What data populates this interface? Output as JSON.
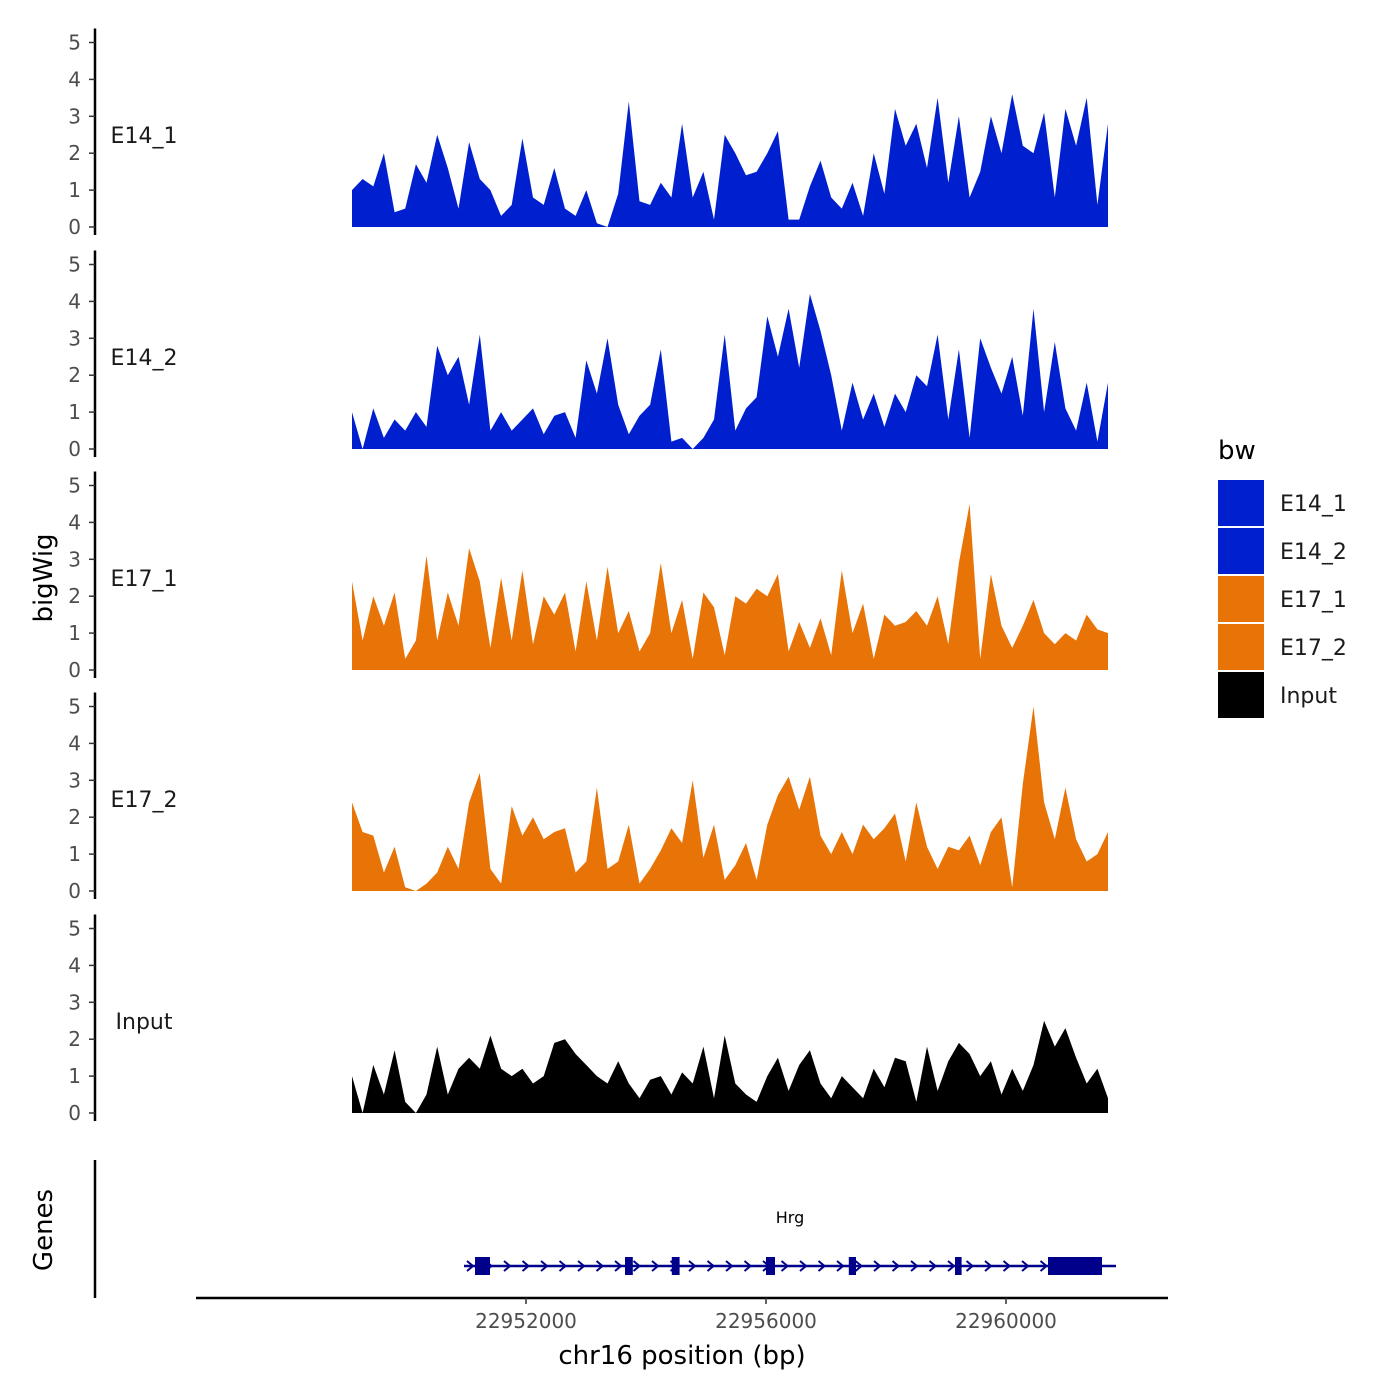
{
  "chart_data": {
    "type": "area",
    "chromosome": "chr16",
    "xlabel": "chr16 position (bp)",
    "ylabel": "bigWig",
    "gene_track_label": "Genes",
    "xlim": [
      22946500,
      22962700
    ],
    "region": [
      22949100,
      22961700
    ],
    "x_ticks": [
      22952000,
      22956000,
      22960000
    ],
    "x_tick_labels": [
      "22952000",
      "22956000",
      "22960000"
    ],
    "ylim": [
      0,
      5
    ],
    "y_ticks": [
      0,
      1,
      2,
      3,
      4,
      5
    ],
    "y_tick_labels": [
      "0",
      "1",
      "2",
      "3",
      "4",
      "5"
    ],
    "legend": {
      "title": "bw",
      "entries": [
        {
          "label": "E14_1",
          "color": "#0020d0"
        },
        {
          "label": "E14_2",
          "color": "#0020d0"
        },
        {
          "label": "E17_1",
          "color": "#e87408"
        },
        {
          "label": "E17_2",
          "color": "#e87408"
        },
        {
          "label": "Input",
          "color": "#000000"
        }
      ]
    },
    "series": [
      {
        "name": "E14_1",
        "color": "#0020d0",
        "values": [
          1.0,
          1.3,
          1.1,
          2.0,
          0.4,
          0.5,
          1.7,
          1.2,
          2.5,
          1.6,
          0.5,
          2.3,
          1.3,
          1.0,
          0.3,
          0.6,
          2.4,
          0.8,
          0.6,
          1.6,
          0.5,
          0.3,
          1.0,
          0.1,
          0.0,
          0.9,
          3.4,
          0.7,
          0.6,
          1.2,
          0.8,
          2.8,
          0.8,
          1.5,
          0.2,
          2.5,
          2.0,
          1.4,
          1.5,
          2.0,
          2.6,
          0.2,
          0.2,
          1.1,
          1.8,
          0.8,
          0.5,
          1.2,
          0.3,
          2.0,
          0.9,
          3.2,
          2.2,
          2.8,
          1.6,
          3.5,
          1.2,
          3.0,
          0.8,
          1.5,
          3.0,
          2.0,
          3.6,
          2.2,
          2.0,
          3.1,
          0.8,
          3.2,
          2.2,
          3.5,
          0.6,
          2.8
        ]
      },
      {
        "name": "E14_2",
        "color": "#0020d0",
        "values": [
          1.0,
          0.0,
          1.1,
          0.3,
          0.8,
          0.5,
          1.0,
          0.6,
          2.8,
          2.0,
          2.5,
          1.2,
          3.1,
          0.5,
          1.0,
          0.5,
          0.8,
          1.1,
          0.4,
          0.9,
          1.0,
          0.3,
          2.4,
          1.5,
          3.0,
          1.2,
          0.4,
          0.9,
          1.2,
          2.7,
          0.2,
          0.3,
          0.0,
          0.3,
          0.8,
          3.1,
          0.5,
          1.1,
          1.4,
          3.6,
          2.5,
          3.8,
          2.2,
          4.2,
          3.2,
          2.0,
          0.5,
          1.8,
          0.8,
          1.5,
          0.6,
          1.5,
          1.0,
          2.0,
          1.7,
          3.1,
          0.8,
          2.7,
          0.3,
          3.0,
          2.2,
          1.5,
          2.5,
          0.9,
          3.8,
          1.0,
          2.9,
          1.1,
          0.5,
          1.8,
          0.2,
          1.8
        ]
      },
      {
        "name": "E17_1",
        "color": "#e87408",
        "values": [
          2.4,
          0.8,
          2.0,
          1.2,
          2.1,
          0.3,
          0.8,
          3.1,
          0.8,
          2.1,
          1.2,
          3.3,
          2.4,
          0.6,
          2.5,
          0.8,
          2.7,
          0.7,
          2.0,
          1.5,
          2.1,
          0.5,
          2.4,
          0.8,
          2.8,
          1.0,
          1.6,
          0.5,
          1.0,
          2.9,
          1.0,
          1.9,
          0.3,
          2.1,
          1.7,
          0.4,
          2.0,
          1.8,
          2.2,
          2.0,
          2.6,
          0.5,
          1.3,
          0.6,
          1.4,
          0.4,
          2.7,
          1.0,
          1.8,
          0.3,
          1.5,
          1.2,
          1.3,
          1.6,
          1.2,
          2.0,
          0.7,
          2.9,
          4.5,
          0.3,
          2.6,
          1.2,
          0.6,
          1.2,
          1.9,
          1.0,
          0.7,
          1.0,
          0.8,
          1.5,
          1.1,
          1.0
        ]
      },
      {
        "name": "E17_2",
        "color": "#e87408",
        "values": [
          2.4,
          1.6,
          1.5,
          0.5,
          1.2,
          0.1,
          0.0,
          0.2,
          0.5,
          1.2,
          0.6,
          2.4,
          3.2,
          0.6,
          0.2,
          2.3,
          1.5,
          2.0,
          1.4,
          1.6,
          1.7,
          0.5,
          0.8,
          2.8,
          0.6,
          0.8,
          1.8,
          0.2,
          0.6,
          1.1,
          1.7,
          1.3,
          3.0,
          0.9,
          1.8,
          0.3,
          0.7,
          1.3,
          0.3,
          1.8,
          2.6,
          3.1,
          2.2,
          3.1,
          1.5,
          1.0,
          1.6,
          1.0,
          1.8,
          1.4,
          1.7,
          2.1,
          0.8,
          2.4,
          1.2,
          0.6,
          1.2,
          1.1,
          1.5,
          0.7,
          1.6,
          2.0,
          0.1,
          2.9,
          5.0,
          2.4,
          1.4,
          2.8,
          1.4,
          0.8,
          1.0,
          1.6
        ]
      },
      {
        "name": "Input",
        "color": "#000000",
        "values": [
          1.0,
          0.0,
          1.3,
          0.5,
          1.7,
          0.3,
          0.0,
          0.5,
          1.8,
          0.5,
          1.2,
          1.5,
          1.2,
          2.1,
          1.2,
          1.0,
          1.2,
          0.8,
          1.0,
          1.9,
          2.0,
          1.6,
          1.3,
          1.0,
          0.8,
          1.4,
          0.8,
          0.4,
          0.9,
          1.0,
          0.5,
          1.1,
          0.8,
          1.8,
          0.4,
          2.1,
          0.8,
          0.5,
          0.3,
          1.0,
          1.5,
          0.6,
          1.3,
          1.7,
          0.8,
          0.4,
          1.0,
          0.7,
          0.4,
          1.2,
          0.7,
          1.5,
          1.4,
          0.3,
          1.8,
          0.6,
          1.4,
          1.9,
          1.6,
          1.0,
          1.4,
          0.5,
          1.2,
          0.6,
          1.3,
          2.5,
          1.8,
          2.3,
          1.5,
          0.8,
          1.2,
          0.4
        ]
      }
    ],
    "gene": {
      "name": "Hrg",
      "strand": "+",
      "start": 22951100,
      "end": 22961700,
      "color": "#00008b",
      "exons": [
        {
          "start": 22951150,
          "end": 22951400,
          "thick": false
        },
        {
          "start": 22953650,
          "end": 22953780,
          "thick": false
        },
        {
          "start": 22954430,
          "end": 22954560,
          "thick": false
        },
        {
          "start": 22956000,
          "end": 22956150,
          "thick": false
        },
        {
          "start": 22957380,
          "end": 22957500,
          "thick": false
        },
        {
          "start": 22959150,
          "end": 22959260,
          "thick": false
        },
        {
          "start": 22960700,
          "end": 22961600,
          "thick": true
        }
      ]
    }
  }
}
